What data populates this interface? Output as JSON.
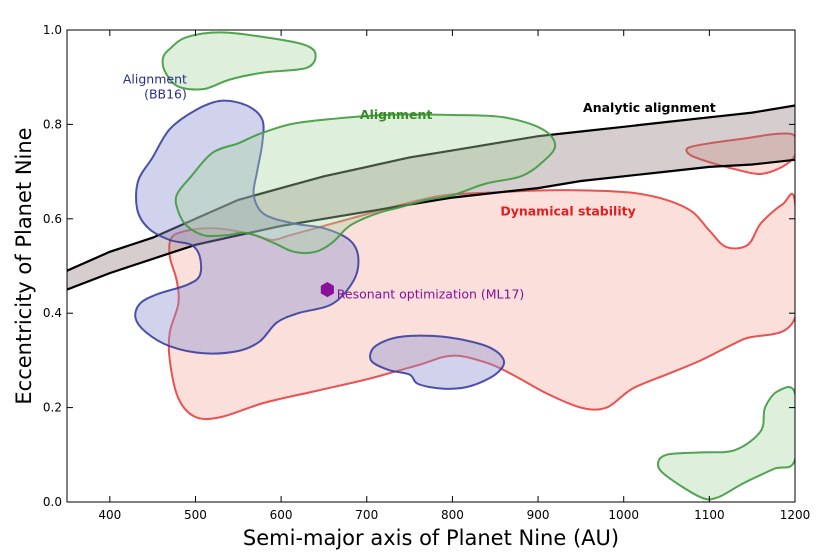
{
  "chart_data": {
    "type": "area",
    "xlabel": "Semi-major axis of Planet Nine (AU)",
    "ylabel": "Eccentricity of Planet Nine",
    "xlim": [
      350,
      1200
    ],
    "ylim": [
      0.0,
      1.0
    ],
    "xticks": [
      400,
      500,
      600,
      700,
      800,
      900,
      1000,
      1100,
      1200
    ],
    "yticks": [
      0.0,
      0.2,
      0.4,
      0.6,
      0.8,
      1.0
    ],
    "grid": false,
    "colors": {
      "alignment_bb16": "#3b3fa0",
      "alignment": "#3f9a3f",
      "analytic_alignment": "#000000",
      "dynamical_stability": "#e8403f",
      "resonant_optimization": "#8a0f9a"
    },
    "regions": [
      {
        "name": "Alignment (BB16)",
        "stroke": "#3b3fa0",
        "fill": "#8c90d0",
        "polygons": [
          [
            [
              450,
              0.73
            ],
            [
              470,
              0.79
            ],
            [
              500,
              0.83
            ],
            [
              530,
              0.85
            ],
            [
              560,
              0.84
            ],
            [
              578,
              0.81
            ],
            [
              578,
              0.76
            ],
            [
              572,
              0.7
            ],
            [
              568,
              0.65
            ],
            [
              580,
              0.61
            ],
            [
              615,
              0.59
            ],
            [
              650,
              0.58
            ],
            [
              680,
              0.555
            ],
            [
              690,
              0.52
            ],
            [
              685,
              0.47
            ],
            [
              660,
              0.42
            ],
            [
              620,
              0.4
            ],
            [
              595,
              0.38
            ],
            [
              575,
              0.34
            ],
            [
              550,
              0.32
            ],
            [
              510,
              0.315
            ],
            [
              470,
              0.33
            ],
            [
              442,
              0.36
            ],
            [
              430,
              0.39
            ],
            [
              435,
              0.42
            ],
            [
              455,
              0.44
            ],
            [
              490,
              0.46
            ],
            [
              505,
              0.48
            ],
            [
              505,
              0.52
            ],
            [
              495,
              0.545
            ],
            [
              470,
              0.555
            ],
            [
              445,
              0.58
            ],
            [
              432,
              0.62
            ],
            [
              433,
              0.68
            ]
          ],
          [
            [
              750,
              0.27
            ],
            [
              760,
              0.25
            ],
            [
              790,
              0.24
            ],
            [
              820,
              0.245
            ],
            [
              850,
              0.27
            ],
            [
              860,
              0.3
            ],
            [
              840,
              0.33
            ],
            [
              790,
              0.35
            ],
            [
              740,
              0.35
            ],
            [
              710,
              0.33
            ],
            [
              705,
              0.3
            ],
            [
              725,
              0.28
            ]
          ]
        ]
      },
      {
        "name": "Alignment",
        "stroke": "#3f9a3f",
        "fill": "#a8d4a0",
        "polygons": [
          [
            [
              470,
              0.96
            ],
            [
              490,
              0.985
            ],
            [
              530,
              0.995
            ],
            [
              580,
              0.985
            ],
            [
              625,
              0.97
            ],
            [
              640,
              0.95
            ],
            [
              630,
              0.92
            ],
            [
              580,
              0.91
            ],
            [
              540,
              0.895
            ],
            [
              510,
              0.875
            ],
            [
              480,
              0.88
            ],
            [
              465,
              0.91
            ],
            [
              462,
              0.94
            ]
          ],
          [
            [
              478,
              0.65
            ],
            [
              495,
              0.69
            ],
            [
              520,
              0.74
            ],
            [
              550,
              0.76
            ],
            [
              575,
              0.78
            ],
            [
              610,
              0.8
            ],
            [
              650,
              0.81
            ],
            [
              720,
              0.82
            ],
            [
              800,
              0.82
            ],
            [
              860,
              0.815
            ],
            [
              905,
              0.79
            ],
            [
              920,
              0.755
            ],
            [
              905,
              0.72
            ],
            [
              880,
              0.69
            ],
            [
              840,
              0.675
            ],
            [
              800,
              0.65
            ],
            [
              770,
              0.64
            ],
            [
              740,
              0.625
            ],
            [
              710,
              0.61
            ],
            [
              680,
              0.585
            ],
            [
              660,
              0.55
            ],
            [
              640,
              0.53
            ],
            [
              615,
              0.53
            ],
            [
              590,
              0.55
            ],
            [
              560,
              0.57
            ],
            [
              535,
              0.565
            ],
            [
              510,
              0.565
            ],
            [
              490,
              0.585
            ],
            [
              480,
              0.615
            ]
          ],
          [
            [
              1090,
              0.01
            ],
            [
              1110,
              0.01
            ],
            [
              1140,
              0.04
            ],
            [
              1175,
              0.07
            ],
            [
              1200,
              0.09
            ],
            [
              1200,
              0.23
            ],
            [
              1180,
              0.235
            ],
            [
              1165,
              0.2
            ],
            [
              1160,
              0.15
            ],
            [
              1130,
              0.11
            ],
            [
              1090,
              0.105
            ],
            [
              1050,
              0.1
            ],
            [
              1040,
              0.08
            ],
            [
              1050,
              0.055
            ]
          ]
        ]
      },
      {
        "name": "Dynamical stability",
        "stroke": "#e8403f",
        "fill": "#f4b8ae",
        "polygons": [
          [
            [
              470,
              0.3
            ],
            [
              480,
              0.22
            ],
            [
              500,
              0.18
            ],
            [
              530,
              0.18
            ],
            [
              580,
              0.21
            ],
            [
              640,
              0.235
            ],
            [
              700,
              0.26
            ],
            [
              760,
              0.29
            ],
            [
              800,
              0.31
            ],
            [
              840,
              0.295
            ],
            [
              870,
              0.27
            ],
            [
              910,
              0.23
            ],
            [
              950,
              0.2
            ],
            [
              980,
              0.2
            ],
            [
              1010,
              0.24
            ],
            [
              1050,
              0.27
            ],
            [
              1090,
              0.3
            ],
            [
              1140,
              0.345
            ],
            [
              1200,
              0.39
            ],
            [
              1200,
              0.635
            ],
            [
              1185,
              0.63
            ],
            [
              1160,
              0.59
            ],
            [
              1145,
              0.545
            ],
            [
              1120,
              0.54
            ],
            [
              1100,
              0.575
            ],
            [
              1080,
              0.615
            ],
            [
              1050,
              0.64
            ],
            [
              1010,
              0.655
            ],
            [
              960,
              0.66
            ],
            [
              900,
              0.66
            ],
            [
              840,
              0.655
            ],
            [
              790,
              0.65
            ],
            [
              740,
              0.63
            ],
            [
              700,
              0.61
            ],
            [
              650,
              0.585
            ],
            [
              610,
              0.565
            ],
            [
              590,
              0.555
            ],
            [
              570,
              0.565
            ],
            [
              545,
              0.575
            ],
            [
              520,
              0.58
            ],
            [
              490,
              0.575
            ],
            [
              472,
              0.56
            ],
            [
              470,
              0.52
            ],
            [
              478,
              0.47
            ],
            [
              480,
              0.42
            ],
            [
              470,
              0.36
            ]
          ],
          [
            [
              1075,
              0.75
            ],
            [
              1100,
              0.76
            ],
            [
              1140,
              0.77
            ],
            [
              1180,
              0.78
            ],
            [
              1200,
              0.775
            ],
            [
              1200,
              0.735
            ],
            [
              1185,
              0.71
            ],
            [
              1160,
              0.695
            ],
            [
              1130,
              0.705
            ],
            [
              1100,
              0.72
            ],
            [
              1078,
              0.735
            ]
          ]
        ]
      }
    ],
    "band": {
      "name": "Analytic alignment",
      "stroke": "#000000",
      "fill": "#8a7272",
      "upper": [
        [
          350,
          0.49
        ],
        [
          400,
          0.53
        ],
        [
          450,
          0.56
        ],
        [
          500,
          0.6
        ],
        [
          550,
          0.64
        ],
        [
          600,
          0.665
        ],
        [
          650,
          0.69
        ],
        [
          700,
          0.71
        ],
        [
          750,
          0.73
        ],
        [
          800,
          0.745
        ],
        [
          850,
          0.76
        ],
        [
          900,
          0.775
        ],
        [
          950,
          0.785
        ],
        [
          1000,
          0.795
        ],
        [
          1050,
          0.805
        ],
        [
          1100,
          0.815
        ],
        [
          1150,
          0.825
        ],
        [
          1200,
          0.84
        ]
      ],
      "lower": [
        [
          350,
          0.45
        ],
        [
          400,
          0.485
        ],
        [
          450,
          0.515
        ],
        [
          500,
          0.545
        ],
        [
          550,
          0.565
        ],
        [
          600,
          0.585
        ],
        [
          650,
          0.6
        ],
        [
          700,
          0.615
        ],
        [
          750,
          0.63
        ],
        [
          800,
          0.645
        ],
        [
          850,
          0.655
        ],
        [
          900,
          0.665
        ],
        [
          950,
          0.68
        ],
        [
          1000,
          0.69
        ],
        [
          1050,
          0.7
        ],
        [
          1100,
          0.71
        ],
        [
          1150,
          0.715
        ],
        [
          1200,
          0.725
        ]
      ]
    },
    "point": {
      "name": "Resonant optimization (ML17)",
      "x": 654,
      "y": 0.45,
      "color": "#8a0f9a"
    },
    "annotations": [
      {
        "text": "Alignment",
        "text2": "(BB16)",
        "x": 490,
        "y": 0.895,
        "color": "#2a2e8a",
        "bold": false,
        "anchor": "end"
      },
      {
        "text": "Alignment",
        "x": 692,
        "y": 0.82,
        "color": "#3a8a2a",
        "bold": true,
        "anchor": "start"
      },
      {
        "text": "Analytic alignment",
        "x": 1030,
        "y": 0.835,
        "color": "#000000",
        "bold": true,
        "anchor": "middle"
      },
      {
        "text": "Dynamical stability",
        "x": 935,
        "y": 0.615,
        "color": "#e02020",
        "bold": true,
        "anchor": "middle"
      },
      {
        "text": "Resonant optimization (ML17)",
        "x": 665,
        "y": 0.44,
        "color": "#8a0f9a",
        "bold": false,
        "anchor": "start"
      }
    ]
  }
}
